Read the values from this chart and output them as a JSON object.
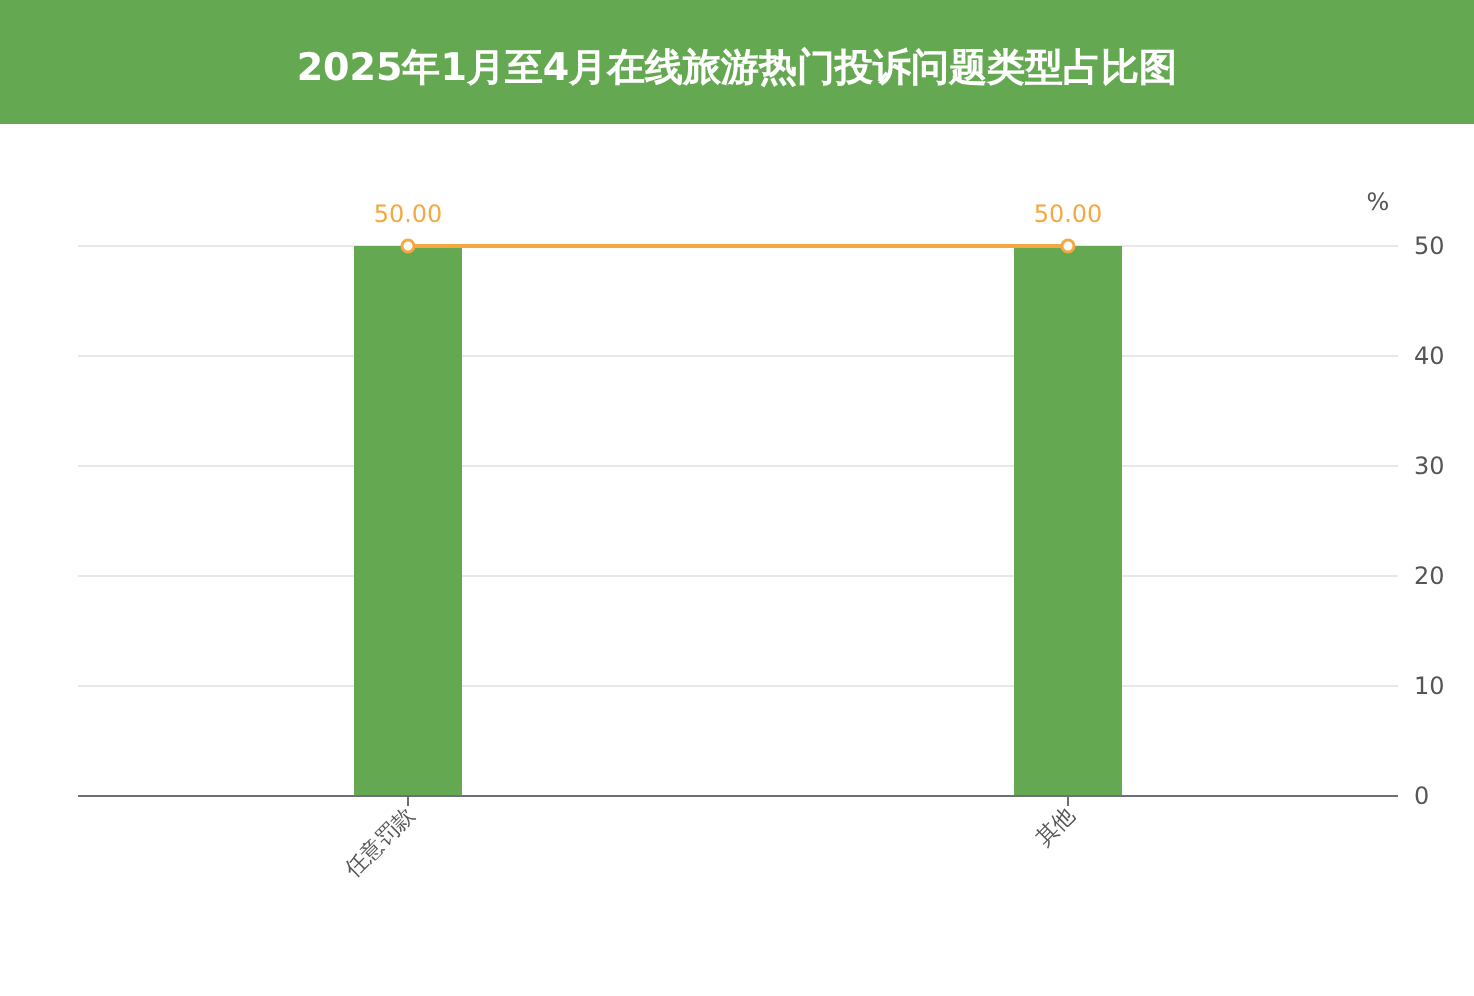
{
  "chart_data": {
    "type": "bar",
    "title": "2025年1月至4月在线旅游热门投诉问题类型占比图",
    "ylabel": "%",
    "categories": [
      "任意罚款",
      "其他"
    ],
    "series": [
      {
        "color": "#65a852",
        "values": [
          50,
          50
        ]
      },
      {
        "type": "line",
        "color": "#f5a742",
        "values": [
          50,
          50
        ],
        "value_labels": [
          "50.00",
          "50.00"
        ],
        "marker": "circle"
      }
    ],
    "ylim": [
      0,
      50
    ],
    "yticks": [
      0,
      10,
      20,
      30,
      40,
      50
    ],
    "grid": "y"
  }
}
